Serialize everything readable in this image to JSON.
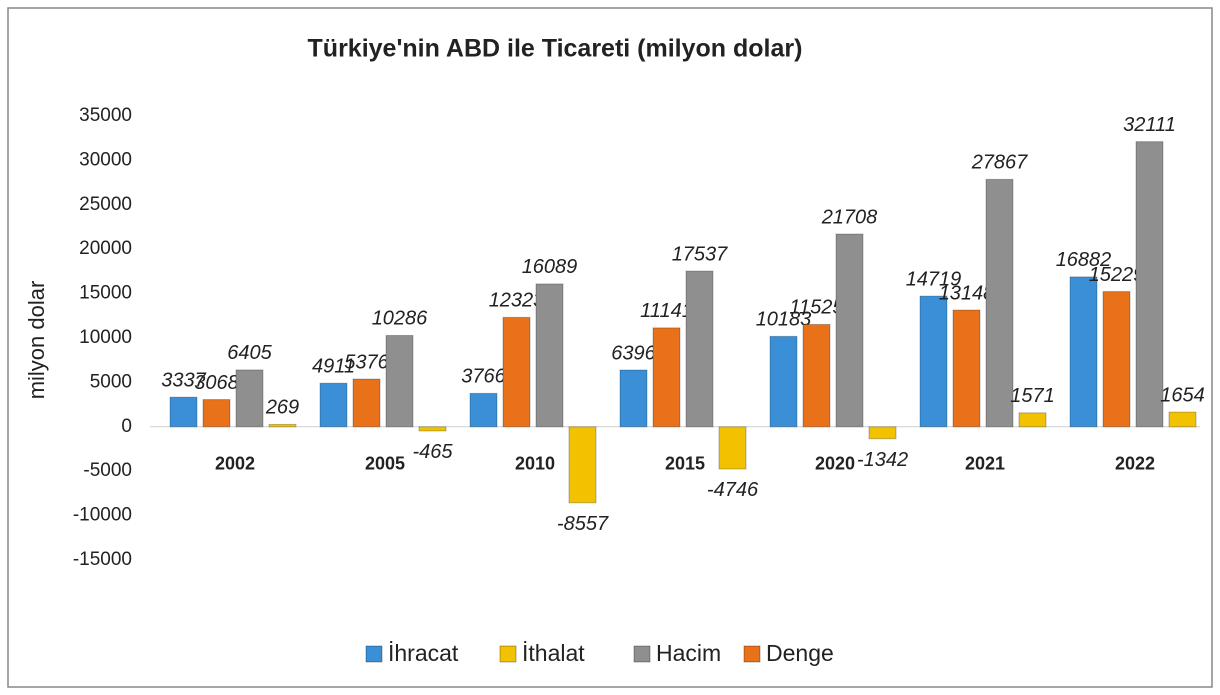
{
  "chart_data": {
    "type": "bar",
    "title": "Türkiye'nin ABD ile Ticareti (milyon dolar)",
    "y_label": "milyon dolar",
    "categories": [
      "2002",
      "2005",
      "2010",
      "2015",
      "2020",
      "2021",
      "2022"
    ],
    "series": [
      {
        "name": "İhracat",
        "color": "#3a8fd6",
        "values": [
          3337,
          4911,
          3766,
          6396,
          10183,
          14719,
          16882
        ]
      },
      {
        "name": "İthalat",
        "color": "#f2c200",
        "values": [
          269,
          -465,
          -8557,
          -4746,
          -1342,
          1571,
          1654
        ]
      },
      {
        "name": "Hacim",
        "color": "#8f8f8f",
        "values": [
          6405,
          10286,
          16089,
          17537,
          21708,
          27867,
          32111
        ]
      },
      {
        "name": "Denge",
        "color": "#e8711a",
        "values": [
          3068,
          5376,
          12323,
          11141,
          11525,
          13148,
          15229
        ]
      }
    ],
    "ylim": [
      -15000,
      35000
    ],
    "yticks": [
      -15000,
      -10000,
      -5000,
      0,
      5000,
      10000,
      15000,
      20000,
      25000,
      30000,
      35000
    ],
    "legend": "bottom"
  }
}
